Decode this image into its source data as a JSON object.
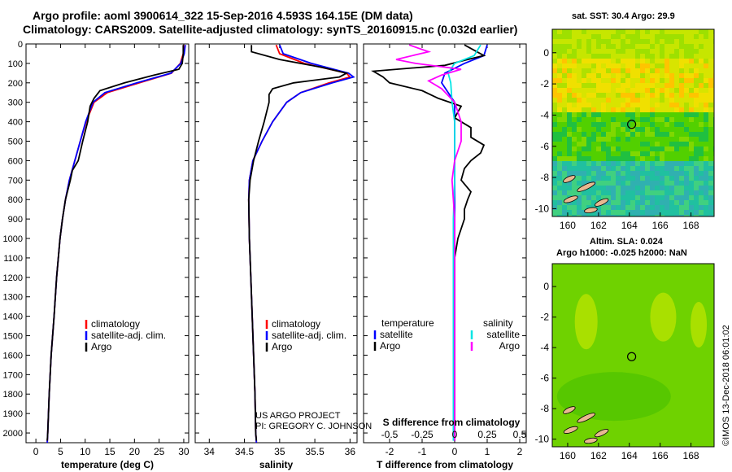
{
  "header": {
    "title_line1": "Argo profile: aoml 3900614_322 15-Sep-2016 4.593S 164.15E (DM data)",
    "title_line2": "Climatology: CARS2009. Satellite-adjusted climatology: synTS_20160915.nc (0.032d earlier)"
  },
  "colors": {
    "climatology": "#ff0000",
    "satellite": "#0000ff",
    "argo": "#000000",
    "salinity_satellite": "#00e5e5",
    "salinity_argo": "#ff00ff"
  },
  "labels": {
    "depth_ticks": [
      "0",
      "100",
      "200",
      "300",
      "400",
      "500",
      "600",
      "700",
      "800",
      "900",
      "1000",
      "1100",
      "1200",
      "1300",
      "1400",
      "1500",
      "1600",
      "1700",
      "1800",
      "1900",
      "2000"
    ],
    "credit_line1": "US ARGO PROJECT",
    "credit_line2": "PI: GREGORY C. JOHNSON",
    "s_diff_title": "S difference from climatology",
    "imos_stamp": "©IMOS 13-Dec-2018 06:01:02"
  },
  "maps": {
    "sst_title": "sat. SST: 30.4 Argo: 29.9",
    "sla_title_line1": "Altim. SLA: 0.024",
    "sla_title_line2": "Argo h1000: -0.025 h2000: NaN",
    "lon_ticks": [
      "160",
      "162",
      "164",
      "166",
      "168"
    ],
    "lat_ticks": [
      "0",
      "-2",
      "-4",
      "-6",
      "-8",
      "-10"
    ],
    "float_lon": 164.15,
    "float_lat": -4.593,
    "xlim": [
      159,
      169.5
    ],
    "ylim": [
      -10.5,
      1.5
    ]
  },
  "chart_data": [
    {
      "type": "line",
      "panel": "temperature",
      "xlabel": "temperature (deg C)",
      "xlim": [
        -2,
        31
      ],
      "ylim": [
        2050,
        0
      ],
      "x_ticks": [
        "0",
        "5",
        "10",
        "15",
        "20",
        "25",
        "30"
      ],
      "legend": [
        "climatology",
        "satellite-adj. clim.",
        "Argo"
      ],
      "series": [
        {
          "name": "climatology",
          "depth": [
            5,
            50,
            100,
            150,
            200,
            250,
            300,
            400,
            500,
            600,
            700,
            800,
            900,
            1000,
            1200,
            1400,
            1600,
            1800,
            2000,
            2050
          ],
          "values": [
            30.0,
            29.9,
            29.3,
            27.5,
            21.0,
            14.5,
            11.8,
            10.2,
            9.0,
            7.9,
            6.8,
            6.0,
            5.4,
            4.9,
            4.2,
            3.7,
            3.1,
            2.7,
            2.4,
            2.3
          ]
        },
        {
          "name": "satellite-adj. clim.",
          "depth": [
            5,
            50,
            100,
            150,
            200,
            250,
            300,
            400,
            500,
            600,
            700,
            800,
            900,
            1000,
            1200,
            1400,
            1600,
            1800,
            2000,
            2050
          ],
          "values": [
            30.3,
            30.1,
            29.4,
            27.4,
            20.5,
            14.0,
            11.6,
            10.1,
            9.0,
            7.9,
            6.8,
            6.0,
            5.4,
            4.9,
            4.2,
            3.7,
            3.1,
            2.7,
            2.4,
            2.3
          ]
        },
        {
          "name": "Argo",
          "depth": [
            5,
            50,
            100,
            130,
            160,
            200,
            240,
            280,
            320,
            400,
            500,
            600,
            650,
            700,
            800,
            900,
            1000,
            1200,
            1400,
            1600,
            1800,
            2000,
            2040
          ],
          "values": [
            29.9,
            29.9,
            29.7,
            29.0,
            24.0,
            18.0,
            13.0,
            11.8,
            11.0,
            10.5,
            9.5,
            8.6,
            7.4,
            7.0,
            6.0,
            5.4,
            4.9,
            4.2,
            3.7,
            3.1,
            2.7,
            2.4,
            2.3
          ]
        }
      ]
    },
    {
      "type": "line",
      "panel": "salinity",
      "xlabel": "salinity",
      "xlim": [
        33.8,
        36.1
      ],
      "ylim": [
        2050,
        0
      ],
      "x_ticks": [
        "34",
        "34.5",
        "35",
        "35.5",
        "36"
      ],
      "legend": [
        "climatology",
        "satellite-adj. clim.",
        "Argo"
      ],
      "series": [
        {
          "name": "climatology",
          "depth": [
            5,
            50,
            100,
            150,
            170,
            200,
            250,
            300,
            400,
            500,
            600,
            700,
            800,
            1000,
            1200,
            1400,
            1600,
            1800,
            2000,
            2050
          ],
          "values": [
            34.95,
            35.0,
            35.35,
            35.95,
            36.0,
            35.7,
            35.3,
            35.1,
            34.9,
            34.75,
            34.62,
            34.57,
            34.56,
            34.57,
            34.59,
            34.61,
            34.63,
            34.65,
            34.66,
            34.67
          ]
        },
        {
          "name": "satellite-adj. clim.",
          "depth": [
            5,
            50,
            100,
            150,
            170,
            200,
            250,
            300,
            400,
            500,
            600,
            700,
            800,
            1000,
            1200,
            1400,
            1600,
            1800,
            2000,
            2050
          ],
          "values": [
            35.0,
            35.05,
            35.45,
            35.98,
            36.05,
            35.75,
            35.3,
            35.1,
            34.9,
            34.75,
            34.62,
            34.57,
            34.56,
            34.57,
            34.59,
            34.61,
            34.63,
            34.65,
            34.66,
            34.67
          ]
        },
        {
          "name": "Argo",
          "depth": [
            5,
            40,
            80,
            120,
            150,
            170,
            200,
            230,
            260,
            300,
            400,
            500,
            600,
            700,
            800,
            1000,
            1200,
            1400,
            1600,
            1800,
            2000,
            2040
          ],
          "values": [
            34.6,
            34.6,
            35.0,
            35.6,
            35.95,
            35.85,
            35.2,
            34.9,
            34.85,
            34.85,
            34.78,
            34.7,
            34.63,
            34.58,
            34.56,
            34.57,
            34.59,
            34.61,
            34.63,
            34.65,
            34.66,
            34.67
          ]
        }
      ]
    },
    {
      "type": "line",
      "panel": "difference",
      "xlabel": "T difference from climatology",
      "x2label": "S difference from climatology",
      "xlim": [
        -2.8,
        2.2
      ],
      "x2lim": [
        -0.7,
        0.55
      ],
      "ylim": [
        2050,
        0
      ],
      "x_ticks": [
        "-2",
        "-1",
        "0",
        "1",
        "2"
      ],
      "x2_ticks": [
        "-0.5",
        "-0.25",
        "0",
        "0.25",
        "0.5"
      ],
      "legend": [
        "temperature",
        "satellite",
        "Argo",
        "salinity",
        "satellite",
        "Argo"
      ],
      "series": [
        {
          "name": "satellite",
          "depth": [
            5,
            60,
            100,
            150,
            200,
            250,
            300,
            400,
            500,
            600,
            700,
            900,
            1200,
            1500,
            1800,
            2000,
            2040
          ],
          "values": [
            1.0,
            0.9,
            0.3,
            -0.3,
            -0.4,
            -0.2,
            0.0,
            0.0,
            0.0,
            0.0,
            0.0,
            0.0,
            0.0,
            0.0,
            0.0,
            0.0,
            0.0
          ]
        },
        {
          "name": "Argo",
          "depth": [
            5,
            60,
            80,
            110,
            140,
            170,
            200,
            240,
            280,
            320,
            380,
            430,
            480,
            520,
            560,
            600,
            640,
            700,
            760,
            800,
            850,
            900,
            1000,
            1100,
            1200,
            1500,
            1800,
            2000,
            2040
          ],
          "values": [
            0.3,
            0.9,
            0.4,
            -0.3,
            -2.5,
            -2.2,
            -2.0,
            -1.0,
            -0.5,
            0.2,
            0.0,
            0.5,
            0.5,
            0.9,
            0.8,
            0.5,
            0.3,
            0.2,
            0.5,
            0.4,
            0.3,
            0.3,
            0.1,
            0.0,
            0.0,
            0.0,
            0.0,
            0.0,
            0.0
          ]
        },
        {
          "name": "satellite",
          "depth": [
            5,
            60,
            100,
            150,
            200,
            300,
            400,
            500,
            700,
            900,
            1200,
            1500,
            1800,
            2000,
            2040
          ],
          "values": [
            0.2,
            0.15,
            0.0,
            -0.05,
            -0.03,
            -0.02,
            0.0,
            0.0,
            0.0,
            -0.01,
            -0.01,
            -0.01,
            -0.01,
            -0.01,
            -0.01
          ]
        },
        {
          "name": "Argo",
          "depth": [
            5,
            40,
            80,
            100,
            130,
            160,
            190,
            230,
            300,
            400,
            500,
            600,
            700,
            800,
            900,
            1200,
            1500,
            1800,
            2000,
            2040
          ],
          "values": [
            -0.35,
            -0.2,
            -0.45,
            -0.3,
            0.05,
            -0.1,
            -0.2,
            -0.1,
            0.0,
            0.05,
            0.05,
            0.0,
            -0.02,
            -0.01,
            0.0,
            0.0,
            0.0,
            0.0,
            0.0,
            0.0
          ]
        }
      ]
    }
  ]
}
